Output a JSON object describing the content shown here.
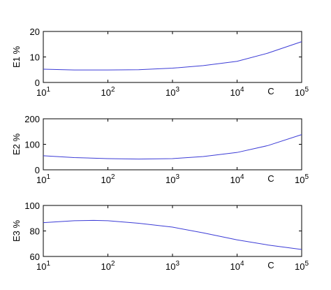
{
  "chart_data": [
    {
      "type": "line",
      "ylabel": "E1 %",
      "xlabel": "C",
      "xscale": "log",
      "color": "#3b3bd6",
      "x": [
        10,
        30,
        100,
        300,
        1000,
        3000,
        10000,
        30000,
        100000
      ],
      "values": [
        5.2,
        4.9,
        4.9,
        5.0,
        5.6,
        6.6,
        8.3,
        11.5,
        16
      ],
      "xlim": [
        10,
        100000
      ],
      "ylim": [
        0,
        20
      ],
      "xticks": [
        {
          "value": 10,
          "label": "10^1"
        },
        {
          "value": 100,
          "label": "10^2"
        },
        {
          "value": 1000,
          "label": "10^3"
        },
        {
          "value": 10000,
          "label": "10^4"
        },
        {
          "value": 100000,
          "label": "10^5"
        }
      ],
      "yticks": [
        0,
        10,
        20
      ]
    },
    {
      "type": "line",
      "ylabel": "E2 %",
      "xlabel": "C",
      "xscale": "log",
      "color": "#3b3bd6",
      "x": [
        10,
        30,
        100,
        300,
        1000,
        3000,
        10000,
        30000,
        100000
      ],
      "values": [
        55,
        48,
        44,
        42,
        44,
        52,
        68,
        95,
        138
      ],
      "xlim": [
        10,
        100000
      ],
      "ylim": [
        0,
        200
      ],
      "xticks": [
        {
          "value": 10,
          "label": "10^1"
        },
        {
          "value": 100,
          "label": "10^2"
        },
        {
          "value": 1000,
          "label": "10^3"
        },
        {
          "value": 10000,
          "label": "10^4"
        },
        {
          "value": 100000,
          "label": "10^5"
        }
      ],
      "yticks": [
        0,
        100,
        200
      ]
    },
    {
      "type": "line",
      "ylabel": "E3 %",
      "xlabel": "C",
      "xscale": "log",
      "color": "#3b3bd6",
      "x": [
        10,
        30,
        60,
        100,
        300,
        1000,
        3000,
        10000,
        30000,
        100000
      ],
      "values": [
        86.5,
        88,
        88.3,
        88,
        86,
        83,
        78.5,
        73,
        69,
        65.5
      ],
      "xlim": [
        10,
        100000
      ],
      "ylim": [
        60,
        100
      ],
      "xticks": [
        {
          "value": 10,
          "label": "10^1"
        },
        {
          "value": 100,
          "label": "10^2"
        },
        {
          "value": 1000,
          "label": "10^3"
        },
        {
          "value": 10000,
          "label": "10^4"
        },
        {
          "value": 100000,
          "label": "10^5"
        }
      ],
      "yticks": [
        60,
        80,
        100
      ]
    }
  ]
}
